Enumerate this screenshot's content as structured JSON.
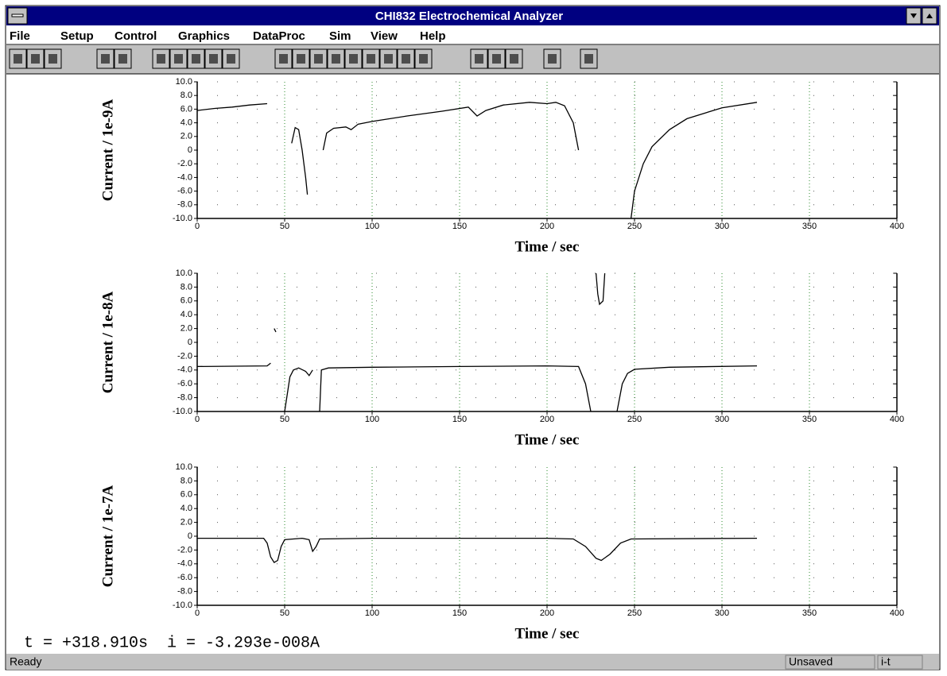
{
  "window": {
    "title": "CHI832 Electrochemical Analyzer",
    "menu": [
      "File",
      "Setup",
      "Control",
      "Graphics",
      "DataProc",
      "Sim",
      "View",
      "Help"
    ],
    "readout": "t = +318.910s  i = -3.293e-008A",
    "status": [
      "Ready",
      "Unsaved",
      "i-t"
    ]
  },
  "chart_data": [
    {
      "type": "line",
      "x_label": "Time / sec",
      "y_label": "Current / 1e-9A",
      "color": "#000000",
      "grid": true,
      "xlim": [
        0,
        400
      ],
      "xticks": [
        0,
        50,
        100,
        150,
        200,
        250,
        300,
        350,
        400
      ],
      "ylim": [
        -10,
        10
      ],
      "yticks": [
        {
          "value": 10,
          "label": "10.0"
        },
        {
          "value": 8,
          "label": "8.0"
        },
        {
          "value": 6,
          "label": "6.0"
        },
        {
          "value": 4,
          "label": "4.0"
        },
        {
          "value": 2,
          "label": "2.0"
        },
        0,
        {
          "value": -2,
          "label": "-2.0"
        },
        {
          "value": -4,
          "label": "-4.0"
        },
        {
          "value": -6,
          "label": "-6.0"
        },
        {
          "value": -8,
          "label": "-8.0"
        },
        {
          "value": -10,
          "label": "-10.0"
        }
      ],
      "x": [
        0,
        10,
        20,
        30,
        40,
        45,
        54,
        56,
        58,
        60,
        62,
        63,
        66,
        72,
        74,
        78,
        85,
        88,
        92,
        96,
        100,
        120,
        140,
        155,
        160,
        165,
        175,
        190,
        200,
        205,
        210,
        215,
        218,
        230,
        248,
        250,
        255,
        260,
        270,
        280,
        300,
        320
      ],
      "values": [
        5.8,
        6.1,
        6.3,
        6.6,
        6.8,
        null,
        1,
        3.3,
        3,
        0,
        -4,
        -6.5,
        null,
        0,
        2.5,
        3.2,
        3.4,
        3,
        3.8,
        4,
        4.2,
        5,
        5.7,
        6.3,
        5,
        5.8,
        6.6,
        7,
        6.8,
        7,
        6.5,
        4,
        0,
        null,
        -10,
        -6,
        -2,
        0.5,
        3,
        4.6,
        6.2,
        7
      ]
    },
    {
      "type": "line",
      "x_label": "Time / sec",
      "y_label": "Current / 1e-8A",
      "color": "#000000",
      "grid": true,
      "xlim": [
        0,
        400
      ],
      "xticks": [
        0,
        50,
        100,
        150,
        200,
        250,
        300,
        350,
        400
      ],
      "ylim": [
        -10,
        10
      ],
      "yticks": [
        {
          "value": 10,
          "label": "10.0"
        },
        {
          "value": 8,
          "label": "8.0"
        },
        {
          "value": 6,
          "label": "6.0"
        },
        {
          "value": 4,
          "label": "4.0"
        },
        {
          "value": 2,
          "label": "2.0"
        },
        0,
        {
          "value": -2,
          "label": "-2.0"
        },
        {
          "value": -4,
          "label": "-4.0"
        },
        {
          "value": -6,
          "label": "-6.0"
        },
        {
          "value": -8,
          "label": "-8.0"
        },
        {
          "value": -10,
          "label": "-10.0"
        }
      ],
      "x": [
        0,
        40,
        42,
        43,
        44,
        45,
        47,
        50,
        53,
        55,
        58,
        62,
        64,
        66,
        68,
        70,
        71,
        75,
        100,
        150,
        200,
        218,
        222,
        225,
        227,
        228,
        229,
        230,
        232,
        233,
        235,
        240,
        243,
        246,
        250,
        270,
        320
      ],
      "values": [
        -3.5,
        -3.4,
        -3,
        null,
        2,
        1.5,
        null,
        -10,
        -5,
        -4,
        -3.7,
        -4.2,
        -4.8,
        -4,
        null,
        -10,
        -4,
        -3.7,
        -3.6,
        -3.5,
        -3.4,
        -3.5,
        -6,
        -10,
        null,
        10,
        7,
        5.5,
        6,
        10,
        null,
        -10,
        -6,
        -4.5,
        -3.9,
        -3.6,
        -3.4
      ]
    },
    {
      "type": "line",
      "x_label": "Time / sec",
      "y_label": "Current / 1e-7A",
      "color": "#000000",
      "grid": true,
      "xlim": [
        0,
        400
      ],
      "xticks": [
        0,
        50,
        100,
        150,
        200,
        250,
        300,
        350,
        400
      ],
      "ylim": [
        -10,
        10
      ],
      "yticks": [
        {
          "value": 10,
          "label": "10.0"
        },
        {
          "value": 8,
          "label": "8.0"
        },
        {
          "value": 6,
          "label": "6.0"
        },
        {
          "value": 4,
          "label": "4.0"
        },
        {
          "value": 2,
          "label": "2.0"
        },
        0,
        {
          "value": -2,
          "label": "-2.0"
        },
        {
          "value": -4,
          "label": "-4.0"
        },
        {
          "value": -6,
          "label": "-6.0"
        },
        {
          "value": -8,
          "label": "-8.0"
        },
        {
          "value": -10,
          "label": "-10.0"
        }
      ],
      "x": [
        0,
        38,
        40,
        42,
        44,
        46,
        48,
        50,
        60,
        64,
        66,
        68,
        70,
        100,
        200,
        215,
        222,
        228,
        231,
        236,
        242,
        248,
        320
      ],
      "values": [
        -0.3,
        -0.3,
        -1,
        -3,
        -3.8,
        -3.5,
        -1.5,
        -0.5,
        -0.3,
        -0.5,
        -2.2,
        -1.5,
        -0.4,
        -0.3,
        -0.3,
        -0.4,
        -1.5,
        -3.2,
        -3.5,
        -2.6,
        -1,
        -0.4,
        -0.3
      ]
    }
  ]
}
